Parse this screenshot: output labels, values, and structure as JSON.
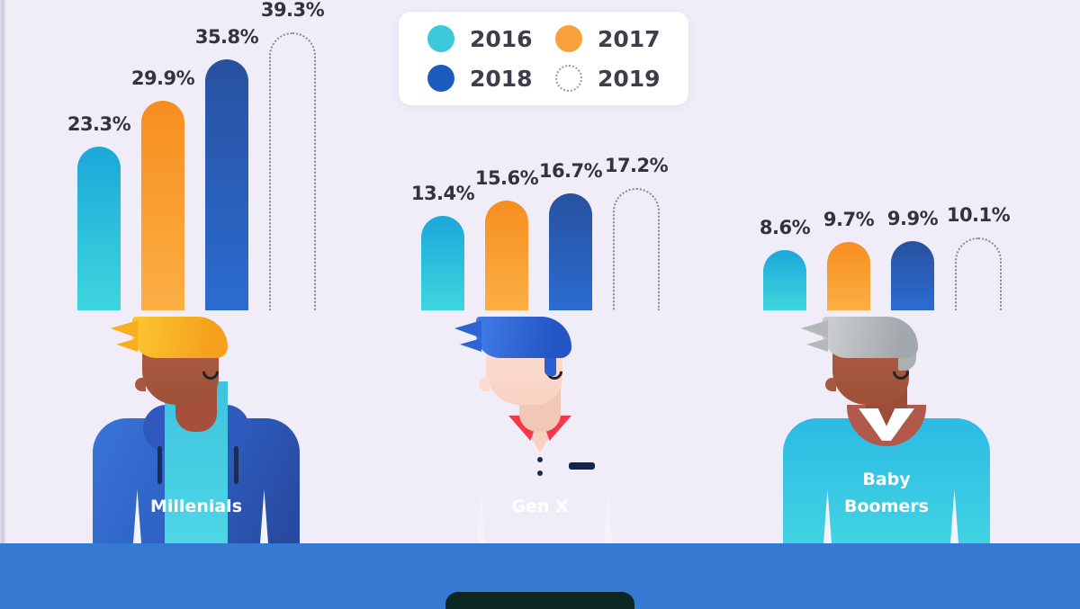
{
  "palette": {
    "background": "#F0EDF9",
    "series_2016": "#2FBFDC",
    "series_2017": "#F89B2E",
    "series_2018": "#2A5FB8",
    "series_2019_outline": "#8B8798",
    "value_label_text": "#34323F",
    "legend_text": "#3F3D4C",
    "table": "#3579D3",
    "laptop": "#0D2723"
  },
  "legend": {
    "items": [
      {
        "label": "2016",
        "style": "solid",
        "color": "#3BC8DC"
      },
      {
        "label": "2017",
        "style": "solid",
        "color": "#F9A23C"
      },
      {
        "label": "2018",
        "style": "solid",
        "color": "#1E5BBF"
      },
      {
        "label": "2019",
        "style": "dotted-outline",
        "color": "#9A97A6"
      }
    ]
  },
  "chart_data": {
    "type": "bar",
    "unit": "percent",
    "title": "",
    "series_labels": [
      "2016",
      "2017",
      "2018",
      "2019"
    ],
    "legend_position": "top-center",
    "gridlines": false,
    "ylim": [
      0,
      40
    ],
    "groups": [
      {
        "label": "Millenials",
        "values": [
          23.3,
          29.9,
          35.8,
          39.3
        ],
        "value_labels": [
          "23.3%",
          "29.9%",
          "35.8%",
          "39.3%"
        ]
      },
      {
        "label": "Gen X",
        "values": [
          13.4,
          15.6,
          16.7,
          17.2
        ],
        "value_labels": [
          "13.4%",
          "15.6%",
          "16.7%",
          "17.2%"
        ]
      },
      {
        "label": "Baby Boomers",
        "values": [
          8.6,
          9.7,
          9.9,
          10.1
        ],
        "value_labels": [
          "8.6%",
          "9.7%",
          "9.9%",
          "10.1%"
        ]
      }
    ]
  },
  "characters": [
    {
      "name": "millennial",
      "label": "Millenials"
    },
    {
      "name": "gen-x",
      "label": "Gen X"
    },
    {
      "name": "baby-boomer",
      "label": "Baby\nBoomers"
    }
  ]
}
